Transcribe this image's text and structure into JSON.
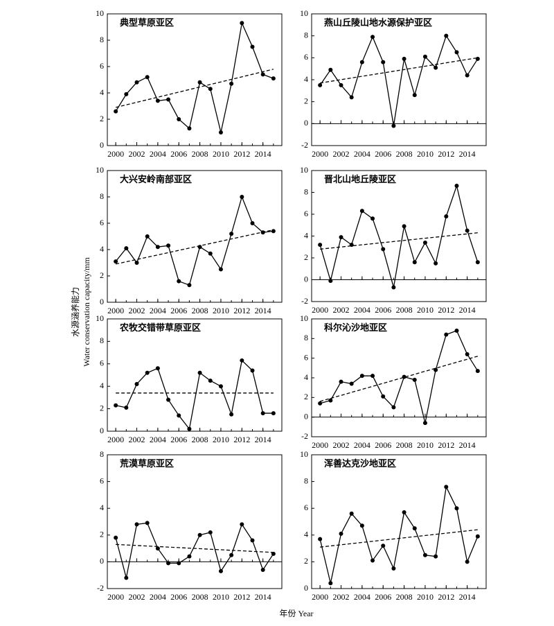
{
  "y_axis_label": [
    "水源涵养能力",
    "Water conservation capacity/mm"
  ],
  "x_axis_label": "年份 Year",
  "chart_data": [
    {
      "type": "line",
      "title": "典型草原亚区",
      "x": [
        2000,
        2001,
        2002,
        2003,
        2004,
        2005,
        2006,
        2007,
        2008,
        2009,
        2010,
        2011,
        2012,
        2013,
        2014,
        2015
      ],
      "values": [
        2.6,
        3.9,
        4.8,
        5.2,
        3.4,
        3.5,
        2.0,
        1.3,
        4.8,
        4.3,
        1.0,
        4.7,
        9.3,
        7.5,
        5.4,
        5.1
      ],
      "trend": [
        2.9,
        5.8
      ],
      "xlim": [
        1999.2,
        2015.8
      ],
      "xticks": [
        2000,
        2002,
        2004,
        2006,
        2008,
        2010,
        2012,
        2014
      ],
      "ylim": [
        0,
        10
      ],
      "yticks": [
        0,
        2,
        4,
        6,
        8,
        10
      ]
    },
    {
      "type": "line",
      "title": "燕山丘陵山地水源保护亚区",
      "x": [
        2000,
        2001,
        2002,
        2003,
        2004,
        2005,
        2006,
        2007,
        2008,
        2009,
        2010,
        2011,
        2012,
        2013,
        2014,
        2015
      ],
      "values": [
        3.5,
        4.9,
        3.5,
        2.4,
        5.6,
        7.9,
        5.6,
        -0.2,
        5.9,
        2.6,
        6.1,
        5.1,
        8.0,
        6.5,
        4.4,
        5.9
      ],
      "trend": [
        3.7,
        6.0
      ],
      "xlim": [
        1999.2,
        2015.8
      ],
      "xticks": [
        2000,
        2002,
        2004,
        2006,
        2008,
        2010,
        2012,
        2014
      ],
      "ylim": [
        -2,
        10
      ],
      "yticks": [
        -2,
        0,
        2,
        4,
        6,
        8,
        10
      ]
    },
    {
      "type": "line",
      "title": "大兴安岭南部亚区",
      "x": [
        2000,
        2001,
        2002,
        2003,
        2004,
        2005,
        2006,
        2007,
        2008,
        2009,
        2010,
        2011,
        2012,
        2013,
        2014,
        2015
      ],
      "values": [
        3.1,
        4.1,
        3.0,
        5.0,
        4.2,
        4.3,
        1.6,
        1.3,
        4.2,
        3.7,
        2.5,
        5.2,
        8.0,
        6.0,
        5.3,
        5.4
      ],
      "trend": [
        2.9,
        5.5
      ],
      "xlim": [
        1999.2,
        2015.8
      ],
      "xticks": [
        2000,
        2002,
        2004,
        2006,
        2008,
        2010,
        2012,
        2014
      ],
      "ylim": [
        0,
        10
      ],
      "yticks": [
        0,
        2,
        4,
        6,
        8,
        10
      ]
    },
    {
      "type": "line",
      "title": "晋北山地丘陵亚区",
      "x": [
        2000,
        2001,
        2002,
        2003,
        2004,
        2005,
        2006,
        2007,
        2008,
        2009,
        2010,
        2011,
        2012,
        2013,
        2014,
        2015
      ],
      "values": [
        3.2,
        -0.1,
        3.9,
        3.2,
        6.3,
        5.6,
        2.8,
        -0.7,
        4.9,
        1.6,
        3.4,
        1.5,
        5.8,
        8.6,
        4.5,
        1.6
      ],
      "trend": [
        2.8,
        4.3
      ],
      "xlim": [
        1999.2,
        2015.8
      ],
      "xticks": [
        2000,
        2002,
        2004,
        2006,
        2008,
        2010,
        2012,
        2014
      ],
      "ylim": [
        -2,
        10
      ],
      "yticks": [
        -2,
        0,
        2,
        4,
        6,
        8,
        10
      ]
    },
    {
      "type": "line",
      "title": "农牧交错带草原亚区",
      "x": [
        2000,
        2001,
        2002,
        2003,
        2004,
        2005,
        2006,
        2007,
        2008,
        2009,
        2010,
        2011,
        2012,
        2013,
        2014,
        2015
      ],
      "values": [
        2.3,
        2.1,
        4.2,
        5.2,
        5.6,
        2.8,
        1.4,
        0.2,
        5.2,
        4.5,
        4.0,
        1.5,
        6.3,
        5.4,
        1.6,
        1.6
      ],
      "trend": [
        3.4,
        3.4
      ],
      "xlim": [
        1999.2,
        2015.8
      ],
      "xticks": [
        2000,
        2002,
        2004,
        2006,
        2008,
        2010,
        2012,
        2014
      ],
      "ylim": [
        0,
        10
      ],
      "yticks": [
        0,
        2,
        4,
        6,
        8,
        10
      ]
    },
    {
      "type": "line",
      "title": "科尔沁沙地亚区",
      "x": [
        2000,
        2001,
        2002,
        2003,
        2004,
        2005,
        2006,
        2007,
        2008,
        2009,
        2010,
        2011,
        2012,
        2013,
        2014,
        2015
      ],
      "values": [
        1.4,
        1.7,
        3.6,
        3.4,
        4.2,
        4.2,
        2.1,
        1.0,
        4.1,
        3.8,
        -0.6,
        4.8,
        8.4,
        8.8,
        6.4,
        4.7
      ],
      "trend": [
        1.6,
        6.2
      ],
      "xlim": [
        1999.2,
        2015.8
      ],
      "xticks": [
        2000,
        2002,
        2004,
        2006,
        2008,
        2010,
        2012,
        2014
      ],
      "ylim": [
        -2,
        10
      ],
      "yticks": [
        -2,
        0,
        2,
        4,
        6,
        8,
        10
      ]
    },
    {
      "type": "line",
      "title": "荒漠草原亚区",
      "x": [
        2000,
        2001,
        2002,
        2003,
        2004,
        2005,
        2006,
        2007,
        2008,
        2009,
        2010,
        2011,
        2012,
        2013,
        2014,
        2015
      ],
      "values": [
        1.8,
        -1.2,
        2.8,
        2.9,
        1.0,
        -0.1,
        -0.1,
        0.4,
        2.0,
        2.2,
        -0.7,
        0.5,
        2.8,
        1.6,
        -0.6,
        0.6
      ],
      "trend": [
        1.3,
        0.7
      ],
      "xlim": [
        1999.2,
        2015.8
      ],
      "xticks": [
        2000,
        2002,
        2004,
        2006,
        2008,
        2010,
        2012,
        2014
      ],
      "ylim": [
        -2,
        8
      ],
      "yticks": [
        -2,
        0,
        2,
        4,
        6,
        8
      ]
    },
    {
      "type": "line",
      "title": "浑善达克沙地亚区",
      "x": [
        2000,
        2001,
        2002,
        2003,
        2004,
        2005,
        2006,
        2007,
        2008,
        2009,
        2010,
        2011,
        2012,
        2013,
        2014,
        2015
      ],
      "values": [
        3.7,
        0.4,
        4.1,
        5.6,
        4.7,
        2.1,
        3.2,
        1.5,
        5.7,
        4.5,
        2.5,
        2.4,
        7.6,
        6.0,
        2.0,
        3.9
      ],
      "trend": [
        3.1,
        4.4
      ],
      "xlim": [
        1999.2,
        2015.8
      ],
      "xticks": [
        2000,
        2002,
        2004,
        2006,
        2008,
        2010,
        2012,
        2014
      ],
      "ylim": [
        0,
        10
      ],
      "yticks": [
        0,
        2,
        4,
        6,
        8,
        10
      ]
    }
  ]
}
